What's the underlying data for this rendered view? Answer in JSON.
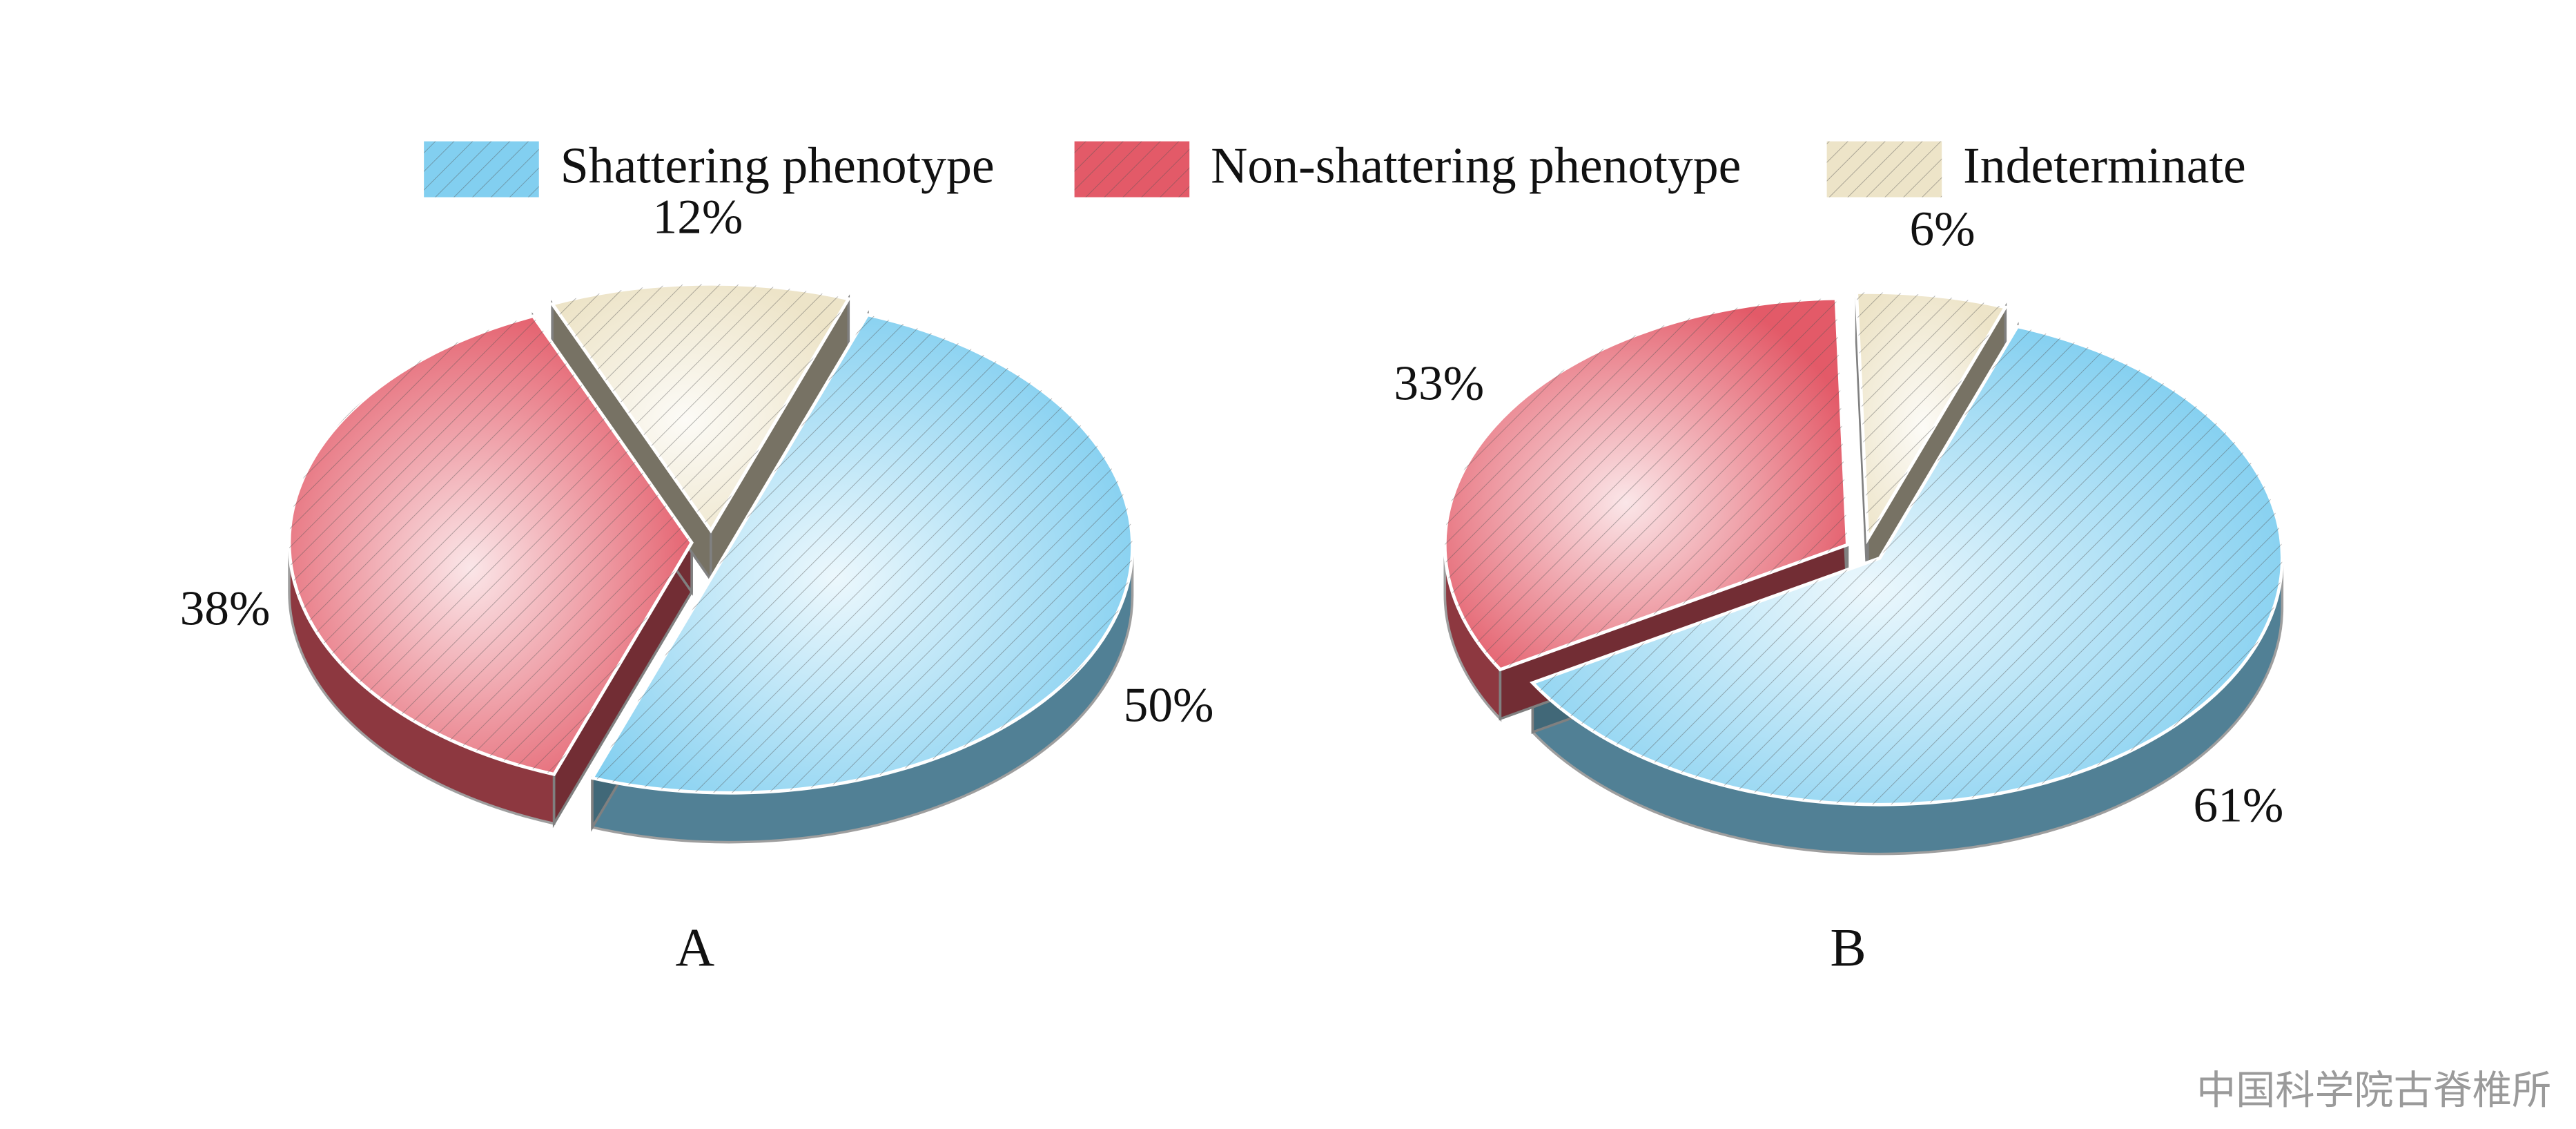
{
  "chart_data": [
    {
      "type": "pie",
      "title": "A",
      "categories": [
        "Shattering phenotype",
        "Non-shattering phenotype",
        "Indeterminate"
      ],
      "values": [
        50,
        38,
        12
      ],
      "value_labels": [
        "50%",
        "38%",
        "12%"
      ],
      "colors": [
        "#82cff0",
        "#e35a68",
        "#ede4c8"
      ]
    },
    {
      "type": "pie",
      "title": "B",
      "categories": [
        "Shattering phenotype",
        "Non-shattering phenotype",
        "Indeterminate"
      ],
      "values": [
        61,
        33,
        6
      ],
      "value_labels": [
        "61%",
        "33%",
        "6%"
      ],
      "colors": [
        "#82cff0",
        "#e35a68",
        "#ede4c8"
      ]
    }
  ],
  "watermark": "中国科学院古脊椎所"
}
